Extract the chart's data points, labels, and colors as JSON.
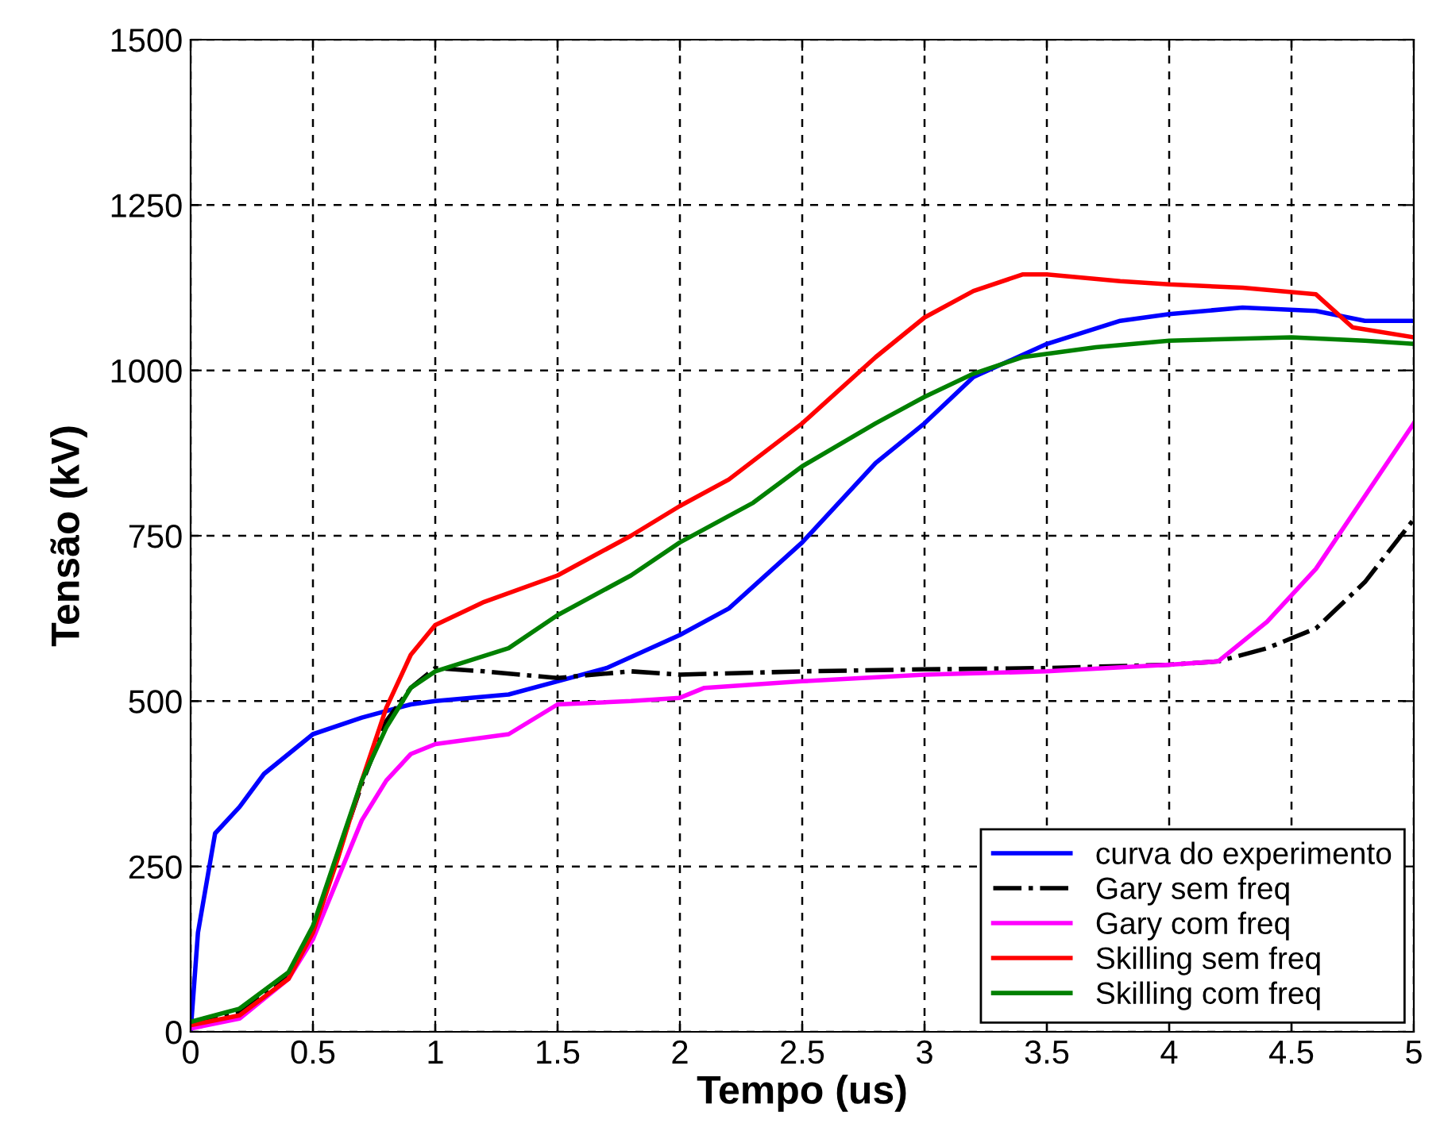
{
  "chart_data": {
    "type": "line",
    "xlabel": "Tempo (us)",
    "ylabel": "Tensão (kV)",
    "xlim": [
      0,
      5
    ],
    "ylim": [
      0,
      1500
    ],
    "xticks": [
      0,
      0.5,
      1,
      1.5,
      2,
      2.5,
      3,
      3.5,
      4,
      4.5,
      5
    ],
    "yticks": [
      0,
      250,
      500,
      750,
      1000,
      1250,
      1500
    ],
    "grid": true,
    "legend": "bottom right",
    "series": [
      {
        "name": "curva do experimento",
        "color": "#0000ff",
        "line_style": "solid",
        "x": [
          0,
          0.03,
          0.1,
          0.2,
          0.3,
          0.5,
          0.7,
          0.9,
          1.0,
          1.3,
          1.5,
          1.7,
          2.0,
          2.2,
          2.5,
          2.8,
          3.0,
          3.2,
          3.5,
          3.8,
          4.0,
          4.3,
          4.6,
          4.8,
          5.0
        ],
        "values": [
          0,
          150,
          300,
          340,
          390,
          450,
          475,
          495,
          500,
          510,
          530,
          550,
          600,
          640,
          740,
          860,
          920,
          990,
          1040,
          1075,
          1085,
          1095,
          1090,
          1075,
          1075
        ]
      },
      {
        "name": "Gary sem freq",
        "color": "#000000",
        "line_style": "dashdot",
        "x": [
          0,
          0.2,
          0.4,
          0.5,
          0.6,
          0.7,
          0.8,
          0.9,
          1.0,
          1.2,
          1.5,
          1.8,
          2.0,
          2.5,
          3.0,
          3.5,
          4.0,
          4.2,
          4.4,
          4.6,
          4.8,
          5.0
        ],
        "values": [
          10,
          30,
          85,
          155,
          265,
          375,
          470,
          520,
          550,
          545,
          535,
          545,
          540,
          545,
          548,
          550,
          555,
          560,
          580,
          610,
          680,
          775
        ]
      },
      {
        "name": "Gary com freq",
        "color": "#ff00ff",
        "line_style": "solid",
        "x": [
          0,
          0.2,
          0.4,
          0.5,
          0.6,
          0.7,
          0.8,
          0.9,
          1.0,
          1.3,
          1.5,
          1.8,
          2.0,
          2.1,
          2.5,
          3.0,
          3.5,
          4.0,
          4.2,
          4.4,
          4.6,
          4.8,
          5.0
        ],
        "values": [
          5,
          20,
          80,
          140,
          230,
          320,
          380,
          420,
          435,
          450,
          495,
          500,
          505,
          520,
          530,
          540,
          545,
          555,
          560,
          620,
          700,
          810,
          920
        ]
      },
      {
        "name": "Skilling sem freq",
        "color": "#ff0000",
        "line_style": "solid",
        "x": [
          0,
          0.2,
          0.4,
          0.5,
          0.6,
          0.7,
          0.8,
          0.9,
          1.0,
          1.2,
          1.5,
          1.8,
          2.0,
          2.2,
          2.5,
          2.8,
          3.0,
          3.2,
          3.4,
          3.5,
          3.8,
          4.0,
          4.3,
          4.6,
          4.75,
          5.0
        ],
        "values": [
          10,
          25,
          80,
          150,
          260,
          380,
          490,
          570,
          615,
          650,
          690,
          750,
          795,
          835,
          920,
          1020,
          1080,
          1120,
          1145,
          1145,
          1135,
          1130,
          1125,
          1115,
          1065,
          1050
        ]
      },
      {
        "name": "Skilling com freq",
        "color": "#008000",
        "line_style": "solid",
        "x": [
          0,
          0.2,
          0.4,
          0.5,
          0.6,
          0.7,
          0.8,
          0.9,
          1.0,
          1.3,
          1.5,
          1.8,
          2.0,
          2.3,
          2.5,
          2.8,
          3.0,
          3.2,
          3.4,
          3.7,
          4.0,
          4.5,
          4.8,
          5.0
        ],
        "values": [
          15,
          35,
          90,
          160,
          270,
          380,
          460,
          520,
          545,
          580,
          630,
          690,
          740,
          800,
          855,
          920,
          960,
          995,
          1020,
          1035,
          1045,
          1050,
          1045,
          1040
        ]
      }
    ]
  }
}
